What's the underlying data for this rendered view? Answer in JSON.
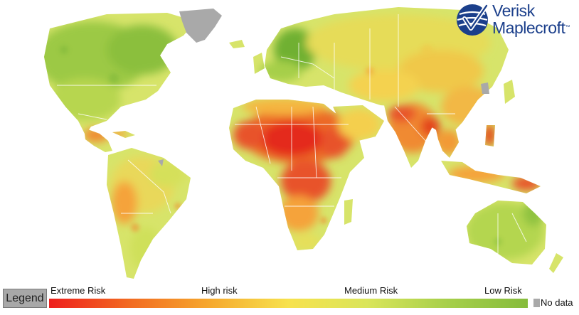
{
  "map": {
    "colors": {
      "extreme": "#e42a1a",
      "very_high": "#ef6a2a",
      "high": "#f5a33a",
      "medium": "#f4e05a",
      "medium_low": "#cfe05a",
      "low": "#9cc944",
      "very_low": "#7fb83a",
      "no_data": "#a9a9a9",
      "background": "#ffffff",
      "borders": "#ffffff"
    }
  },
  "logo": {
    "line1": "Verisk",
    "line2": "Maplecroft",
    "tm": "™",
    "color": "#1b3f8b"
  },
  "legend": {
    "button_label": "Legend",
    "extreme_label": "Extreme Risk",
    "high_label": "High risk",
    "medium_label": "Medium Risk",
    "low_label": "Low Risk",
    "no_data_label": "No data",
    "gradient": [
      "#ee1f1d",
      "#f26a21",
      "#f6a82d",
      "#f7e24d",
      "#d9e55a",
      "#a6cf4a",
      "#86bc3c"
    ]
  }
}
